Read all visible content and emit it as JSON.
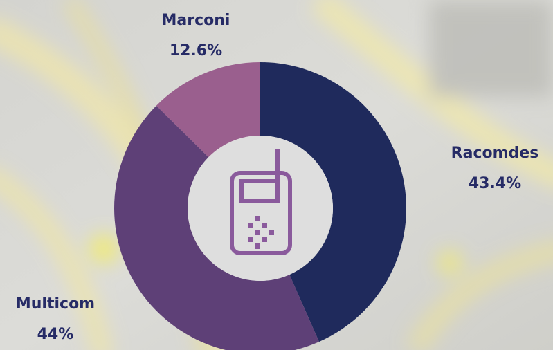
{
  "chart_data": {
    "type": "donut",
    "categories": [
      "Racomdes",
      "Multicom",
      "Marconi"
    ],
    "values": [
      43.4,
      44,
      12.6
    ],
    "value_labels": [
      "43.4%",
      "44%",
      "12.6%"
    ],
    "colors": [
      "#1f2a5c",
      "#5e4077",
      "#9a5f8e"
    ]
  }
}
